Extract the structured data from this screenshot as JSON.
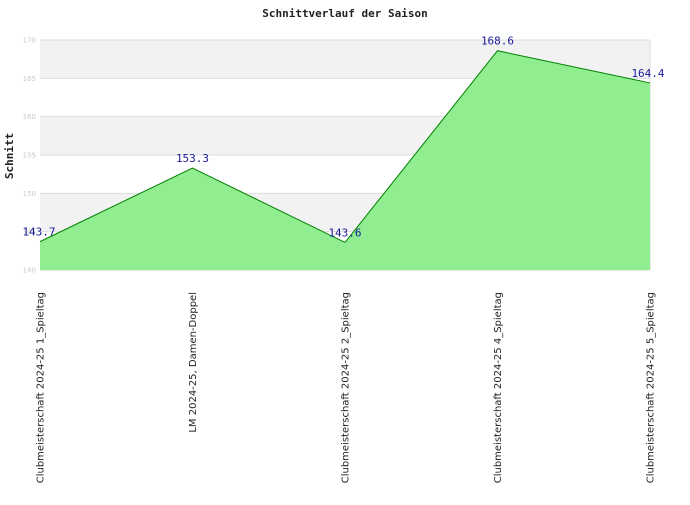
{
  "chart_data": {
    "type": "area",
    "title": "Schnittverlauf der Saison",
    "xlabel": "",
    "ylabel": "Schnitt",
    "categories": [
      "Clubmeisterschaft 2024-25   1_Spieltag",
      "LM 2024-25, Damen-Doppel",
      "Clubmeisterschaft 2024-25   2_Spieltag",
      "Clubmeisterschaft 2024-25   4_Spieltag",
      "Clubmeisterschaft 2024-25   5_Spieltag"
    ],
    "series": [
      {
        "values": [
          143.7,
          153.3,
          143.6,
          168.6,
          164.4
        ],
        "labels": [
          "143.7",
          "153.3",
          "143.6",
          "168.6",
          "164.4"
        ]
      }
    ],
    "ylim": [
      140,
      170
    ],
    "yticks": [
      {
        "value": 140,
        "label": "140"
      },
      {
        "value": 145,
        "label": "145"
      },
      {
        "value": 150,
        "label": "150"
      },
      {
        "value": 155,
        "label": "155"
      },
      {
        "value": 160,
        "label": "160"
      },
      {
        "value": 165,
        "label": "165"
      },
      {
        "value": 170,
        "label": "170"
      }
    ],
    "grid": true,
    "colors": {
      "area_fill": "#90ee90",
      "line": "#008000",
      "band_light": "#f2f2f2",
      "band_white": "#ffffff",
      "grid": "#dddddd",
      "data_label": "#1a1a99"
    }
  }
}
